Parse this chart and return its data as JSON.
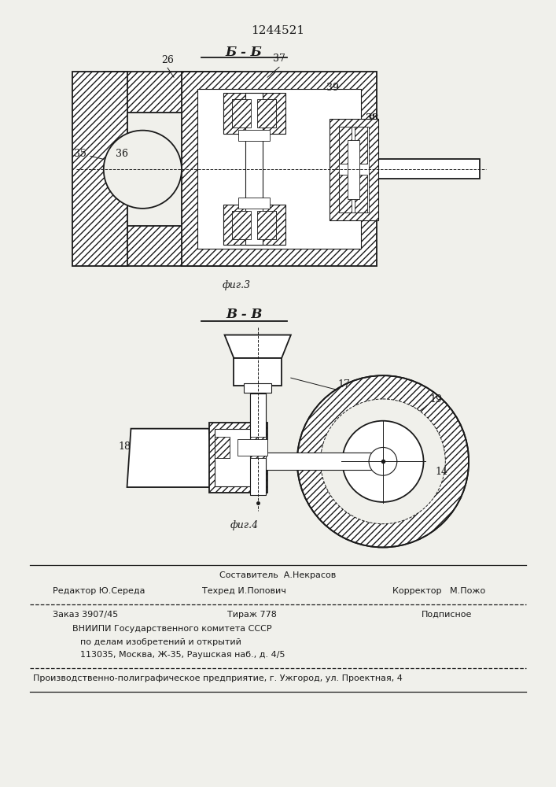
{
  "patent_number": "1244521",
  "fig3_label": "фиг.3",
  "fig4_label": "фиг.4",
  "section_b_b": "Б - Б",
  "section_v_v": "В - В",
  "bg_color": "#f0f0eb",
  "line_color": "#1a1a1a"
}
